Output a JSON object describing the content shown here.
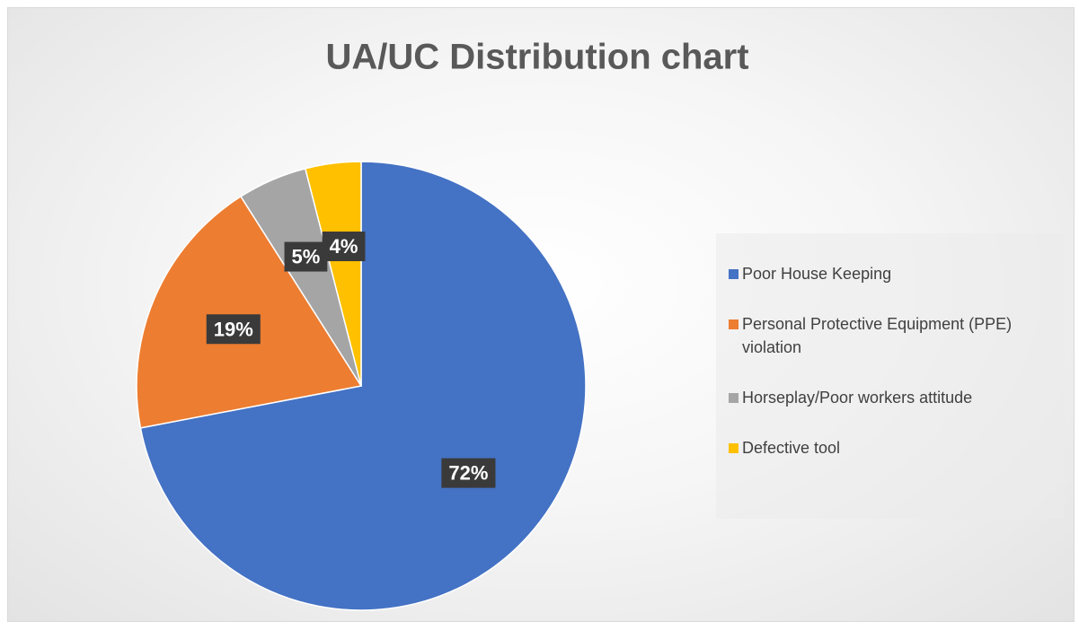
{
  "chart_data": {
    "type": "pie",
    "title": "UA/UC Distribution chart",
    "categories": [
      "Poor House Keeping",
      "Personal Protective Equipment (PPE) violation",
      "Horseplay/Poor workers attitude",
      "Defective tool"
    ],
    "values": [
      72,
      19,
      5,
      4
    ],
    "value_labels": [
      "72%",
      "19%",
      "5%",
      "4%"
    ],
    "colors": [
      "#4472c4",
      "#ed7d31",
      "#a5a5a5",
      "#ffc000"
    ],
    "legend": "right"
  }
}
